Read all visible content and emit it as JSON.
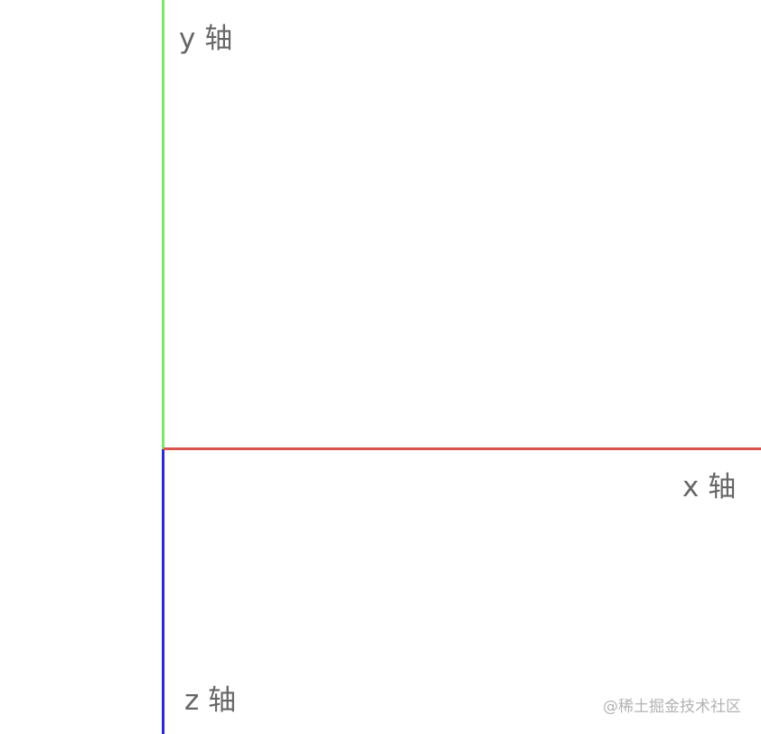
{
  "axes": {
    "y": {
      "label": "y 轴",
      "color": "#7be86a"
    },
    "x": {
      "label": "x 轴",
      "color": "#d9534f"
    },
    "z": {
      "label": "z 轴",
      "color": "#2a2ad0"
    }
  },
  "label_color": "#666666",
  "watermark": {
    "text": "@稀土掘金技术社区",
    "color": "#b3b3b3"
  }
}
